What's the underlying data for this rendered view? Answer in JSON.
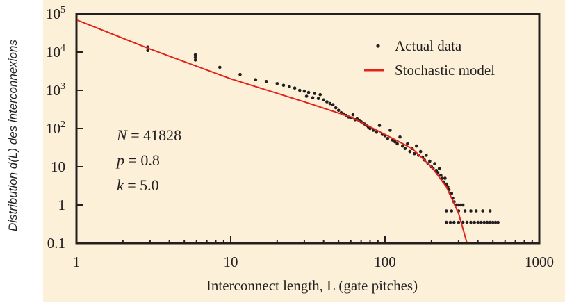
{
  "chart_data": {
    "type": "scatter",
    "xlabel": "Interconnect length, L  (gate pitches)",
    "ylabel": "Distribution d(L) des interconnexions",
    "xscale": "log",
    "yscale": "log",
    "xlim": [
      1,
      1000
    ],
    "ylim": [
      0.1,
      100000
    ],
    "x_ticks": [
      1,
      10,
      100,
      1000
    ],
    "x_tick_labels": [
      "1",
      "10",
      "100",
      "1000"
    ],
    "y_ticks": [
      0.1,
      1,
      10,
      100,
      1000,
      10000,
      100000
    ],
    "y_tick_labels": [
      "0.1",
      "1",
      "10",
      "10^2",
      "10^3",
      "10^4",
      "10^5"
    ],
    "background": "#fcf0d9",
    "legend": {
      "placement": "top-right",
      "entries": [
        {
          "label": "Actual data",
          "marker": "dot",
          "color": "#231f20"
        },
        {
          "label": "Stochastic model",
          "marker": "line",
          "color": "#e2231a"
        }
      ]
    },
    "annotations": [
      {
        "var": "N",
        "value": "= 41828"
      },
      {
        "var": "p",
        "value": "= 0.8"
      },
      {
        "var": "k",
        "value": "= 5.0"
      }
    ],
    "series": [
      {
        "name": "Actual data",
        "kind": "scatter",
        "color": "#231f20",
        "points": [
          [
            2.9,
            13500
          ],
          [
            2.9,
            11000
          ],
          [
            5.9,
            8500
          ],
          [
            5.9,
            7200
          ],
          [
            5.9,
            6200
          ],
          [
            8.5,
            4000
          ],
          [
            11.5,
            2600
          ],
          [
            14.5,
            1900
          ],
          [
            17,
            1700
          ],
          [
            20,
            1500
          ],
          [
            22,
            1350
          ],
          [
            24,
            1250
          ],
          [
            26,
            1150
          ],
          [
            28,
            1000
          ],
          [
            30,
            950
          ],
          [
            31,
            700
          ],
          [
            32,
            880
          ],
          [
            34,
            640
          ],
          [
            35,
            830
          ],
          [
            37,
            610
          ],
          [
            38,
            770
          ],
          [
            40,
            560
          ],
          [
            42,
            500
          ],
          [
            44,
            450
          ],
          [
            46,
            420
          ],
          [
            48,
            350
          ],
          [
            50,
            300
          ],
          [
            52,
            260
          ],
          [
            54,
            240
          ],
          [
            56,
            220
          ],
          [
            58,
            200
          ],
          [
            60,
            190
          ],
          [
            62,
            230
          ],
          [
            64,
            170
          ],
          [
            66,
            180
          ],
          [
            68,
            160
          ],
          [
            70,
            150
          ],
          [
            72,
            140
          ],
          [
            74,
            130
          ],
          [
            76,
            120
          ],
          [
            78,
            110
          ],
          [
            80,
            100
          ],
          [
            84,
            90
          ],
          [
            88,
            80
          ],
          [
            92,
            120
          ],
          [
            96,
            70
          ],
          [
            100,
            65
          ],
          [
            104,
            55
          ],
          [
            108,
            90
          ],
          [
            112,
            50
          ],
          [
            116,
            45
          ],
          [
            120,
            40
          ],
          [
            125,
            60
          ],
          [
            130,
            35
          ],
          [
            135,
            30
          ],
          [
            140,
            40
          ],
          [
            145,
            25
          ],
          [
            150,
            30
          ],
          [
            155,
            22
          ],
          [
            160,
            35
          ],
          [
            165,
            20
          ],
          [
            170,
            25
          ],
          [
            175,
            18
          ],
          [
            180,
            15
          ],
          [
            185,
            20
          ],
          [
            190,
            12
          ],
          [
            195,
            14
          ],
          [
            200,
            10
          ],
          [
            205,
            9
          ],
          [
            210,
            12
          ],
          [
            215,
            8
          ],
          [
            220,
            7
          ],
          [
            225,
            9
          ],
          [
            230,
            6
          ],
          [
            235,
            5
          ],
          [
            240,
            4
          ],
          [
            245,
            5
          ],
          [
            250,
            3.5
          ],
          [
            255,
            3
          ],
          [
            260,
            2.5
          ],
          [
            265,
            2
          ],
          [
            270,
            2
          ],
          [
            275,
            1.5
          ],
          [
            280,
            1.2
          ],
          [
            290,
            1
          ],
          [
            300,
            1
          ],
          [
            310,
            1
          ],
          [
            320,
            1
          ],
          [
            250,
            0.7
          ],
          [
            270,
            0.7
          ],
          [
            300,
            0.7
          ],
          [
            330,
            0.7
          ],
          [
            360,
            0.7
          ],
          [
            390,
            0.7
          ],
          [
            430,
            0.7
          ],
          [
            480,
            0.7
          ],
          [
            250,
            0.35
          ],
          [
            265,
            0.35
          ],
          [
            280,
            0.35
          ],
          [
            300,
            0.35
          ],
          [
            320,
            0.35
          ],
          [
            340,
            0.35
          ],
          [
            360,
            0.35
          ],
          [
            380,
            0.35
          ],
          [
            400,
            0.35
          ],
          [
            420,
            0.35
          ],
          [
            440,
            0.35
          ],
          [
            460,
            0.35
          ],
          [
            480,
            0.35
          ],
          [
            500,
            0.35
          ],
          [
            520,
            0.35
          ],
          [
            540,
            0.35
          ]
        ]
      },
      {
        "name": "Stochastic model",
        "kind": "line",
        "color": "#e2231a",
        "points": [
          [
            1,
            70000
          ],
          [
            3,
            12000
          ],
          [
            10,
            2000
          ],
          [
            30,
            500
          ],
          [
            60,
            200
          ],
          [
            100,
            70
          ],
          [
            150,
            30
          ],
          [
            200,
            10
          ],
          [
            250,
            3
          ],
          [
            300,
            0.6
          ],
          [
            340,
            0.1
          ]
        ]
      }
    ]
  }
}
